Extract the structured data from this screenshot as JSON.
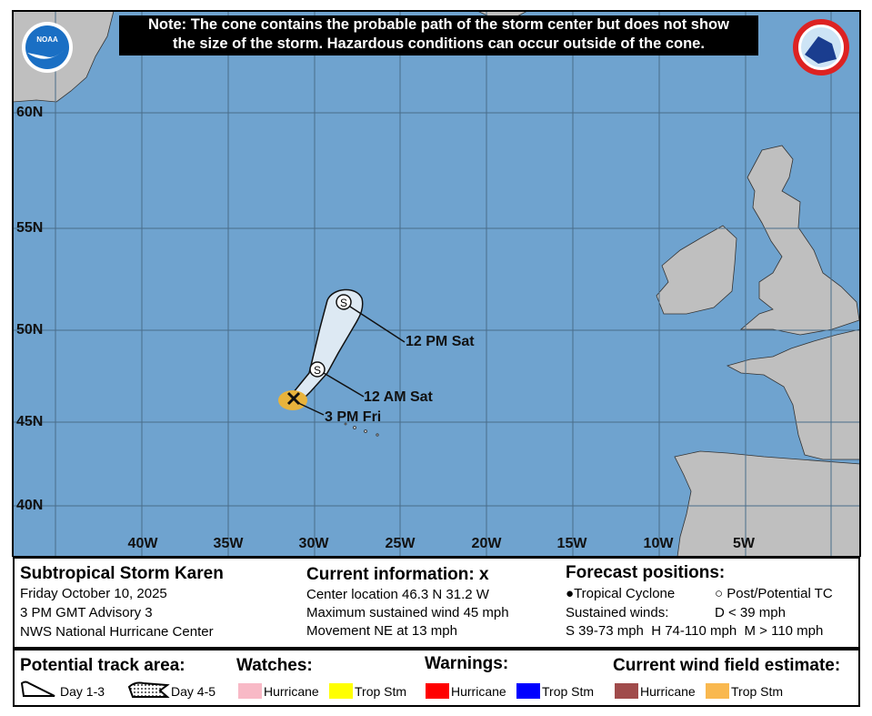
{
  "note": {
    "line1": "Note: The cone contains the probable path of the storm center but does not show",
    "line2": "the size of the storm. Hazardous conditions can occur outside of the cone."
  },
  "logos": {
    "left": "NOAA",
    "right": "NATIONAL WEATHER SERVICE"
  },
  "map": {
    "colors": {
      "ocean": "#6fa3cf",
      "land": "#bfbfbf",
      "cone": "#dde9f3",
      "wind_field": "#e8b33c"
    },
    "lat_labels": [
      "60N",
      "55N",
      "50N",
      "45N",
      "40N"
    ],
    "lon_labels": [
      "40W",
      "35W",
      "30W",
      "25W",
      "20W",
      "15W",
      "10W",
      "5W"
    ],
    "track": [
      {
        "label": "3 PM Fri",
        "type": "current",
        "symbol": "x"
      },
      {
        "label": "12 AM Sat",
        "type": "forecast",
        "symbol": "S"
      },
      {
        "label": "12 PM Sat",
        "type": "forecast",
        "symbol": "S"
      }
    ]
  },
  "info": {
    "storm_name": "Subtropical Storm Karen",
    "date": "Friday October 10, 2025",
    "advisory": "3 PM GMT Advisory 3",
    "center": "NWS National Hurricane Center",
    "current_title": "Current information: ",
    "current_icon": "x",
    "location": "Center location 46.3 N 31.2 W",
    "wind": "Maximum sustained wind 45 mph",
    "movement": "Movement NE at 13 mph",
    "forecast_title": "Forecast positions:",
    "tc": "Tropical Cyclone",
    "ptc": "Post/Potential TC",
    "sustained": "Sustained winds:",
    "d": "D < 39 mph",
    "scale": "S 39-73 mph  H 74-110 mph  M > 110 mph"
  },
  "legend": {
    "track_title": "Potential track area:",
    "day13": "Day 1-3",
    "day45": "Day 4-5",
    "watches_title": "Watches:",
    "warnings_title": "Warnings:",
    "wind_title": "Current wind field estimate:",
    "hurricane": "Hurricane",
    "tropstm": "Trop Stm",
    "colors": {
      "hurricane_watch": "#f8b9c6",
      "tropstm_watch": "#ffff00",
      "hurricane_warning": "#ff0000",
      "tropstm_warning": "#0000ff",
      "hurricane_wind": "#a04b4b",
      "tropstm_wind": "#f9b84f"
    }
  }
}
